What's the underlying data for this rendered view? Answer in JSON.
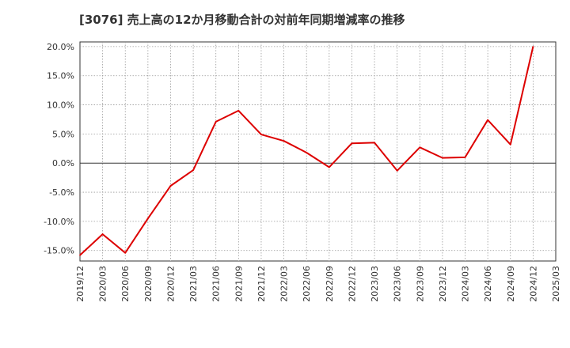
{
  "chart_data": {
    "type": "line",
    "title": "[3076]  売上高の12か月移動合計の対前年同期増減率の推移",
    "xlabel": "",
    "ylabel": "",
    "ylim": [
      -16.8,
      20.8
    ],
    "y_ticks": [
      20,
      15,
      10,
      5,
      0,
      -5,
      -10,
      -15
    ],
    "y_tick_labels": [
      "20.0%",
      "15.0%",
      "10.0%",
      "5.0%",
      "0.0%",
      "-5.0%",
      "-10.0%",
      "-15.0%"
    ],
    "x_labels": [
      "2019/12",
      "2020/03",
      "2020/06",
      "2020/09",
      "2020/12",
      "2021/03",
      "2021/06",
      "2021/09",
      "2021/12",
      "2022/03",
      "2022/06",
      "2022/09",
      "2022/12",
      "2023/03",
      "2023/06",
      "2023/09",
      "2023/12",
      "2024/03",
      "2024/06",
      "2024/09",
      "2024/12",
      "2025/03"
    ],
    "grid": true,
    "series": [
      {
        "name": "売上高の12か月移動合計の対前年同期増減率",
        "color": "#dd0000",
        "values": [
          -15.8,
          -12.2,
          -15.4,
          -9.5,
          -3.9,
          -1.2,
          7.1,
          9.0,
          4.9,
          3.8,
          1.8,
          -0.7,
          3.4,
          3.5,
          -1.3,
          2.7,
          0.9,
          1.0,
          7.4,
          3.2,
          20.0,
          null
        ]
      }
    ]
  }
}
